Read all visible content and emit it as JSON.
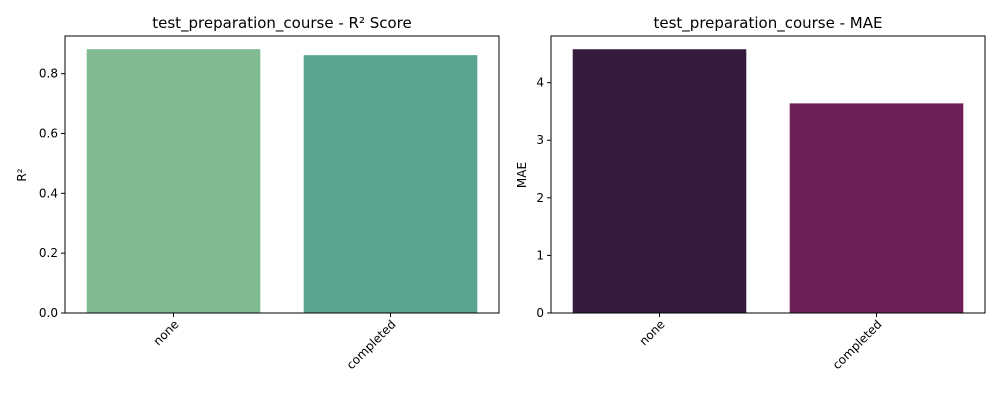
{
  "chart_data": [
    {
      "type": "bar",
      "title": "test_preparation_course - R² Score",
      "xlabel": "",
      "ylabel": "R²",
      "categories": [
        "none",
        "completed"
      ],
      "values": [
        0.882,
        0.862
      ],
      "ylim": [
        0,
        0.926
      ],
      "yticks": [
        0.0,
        0.2,
        0.4,
        0.6,
        0.8
      ],
      "ytick_labels": [
        "0.0",
        "0.2",
        "0.4",
        "0.6",
        "0.8"
      ],
      "colors": [
        "#7fba91",
        "#5aa590"
      ],
      "grid": false
    },
    {
      "type": "bar",
      "title": "test_preparation_course - MAE",
      "xlabel": "",
      "ylabel": "MAE",
      "categories": [
        "none",
        "completed"
      ],
      "values": [
        4.58,
        3.64
      ],
      "ylim": [
        0,
        4.81
      ],
      "yticks": [
        0,
        1,
        2,
        3,
        4
      ],
      "ytick_labels": [
        "0",
        "1",
        "2",
        "3",
        "4"
      ],
      "colors": [
        "#371b3f",
        "#6f1f57"
      ],
      "grid": false
    }
  ]
}
